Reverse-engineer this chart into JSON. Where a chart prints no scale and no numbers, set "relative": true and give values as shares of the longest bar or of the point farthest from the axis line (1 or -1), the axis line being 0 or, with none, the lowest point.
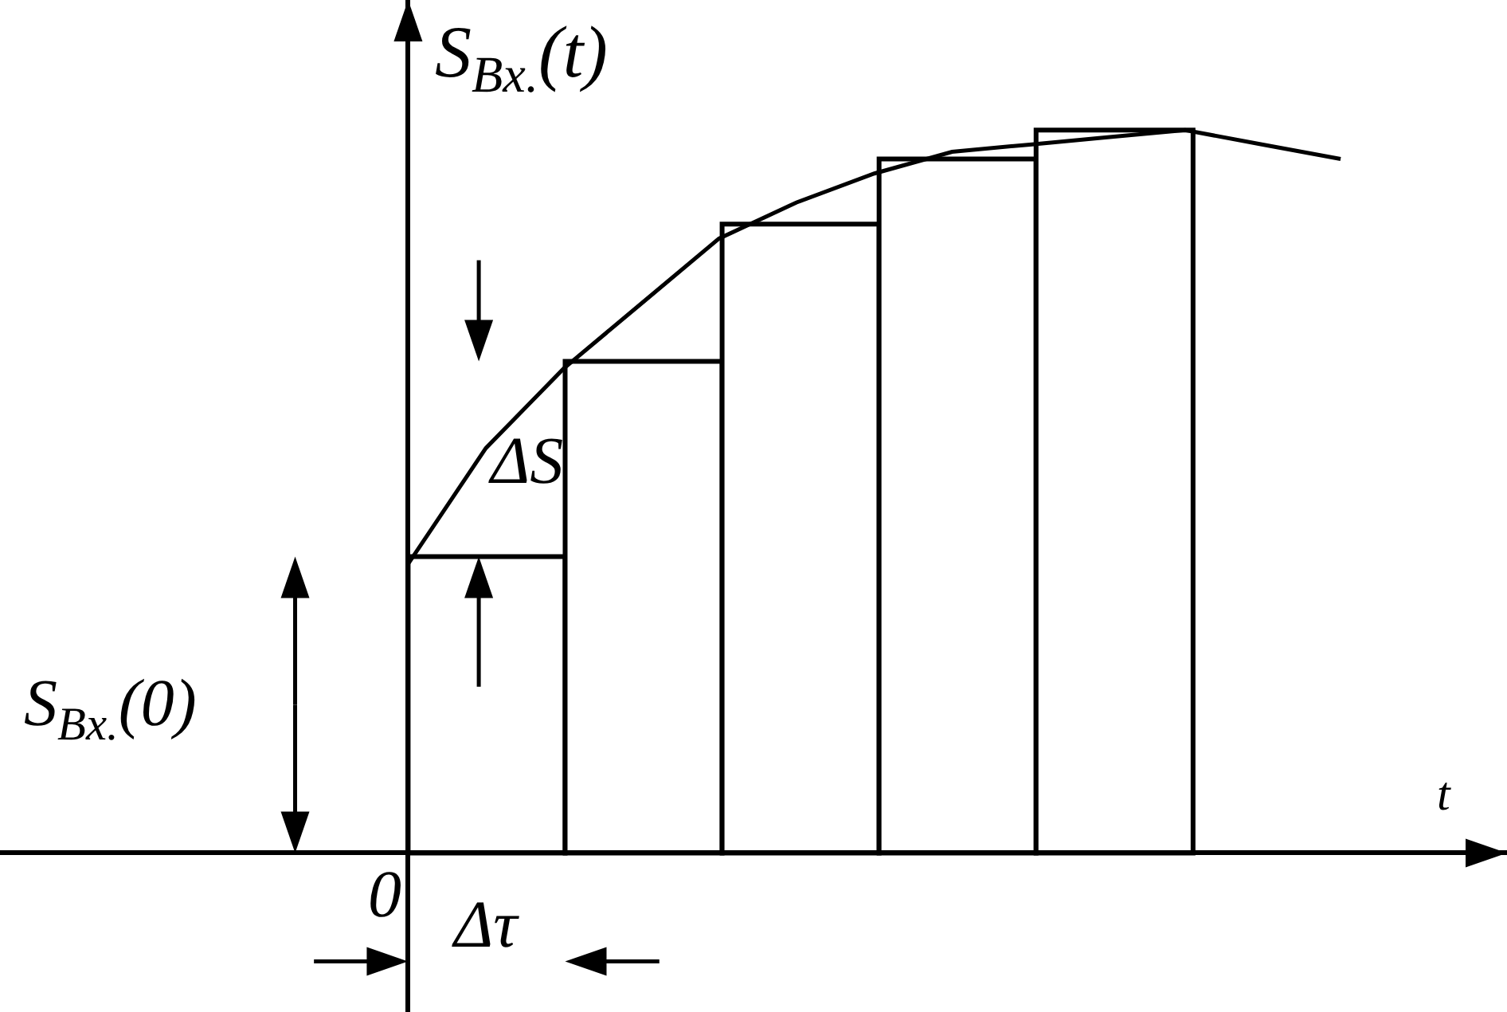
{
  "chart_data": [
    {
      "type": "bar",
      "relative": true,
      "xlabel": "t",
      "ylabel": "S$_{Bx.}$(t)",
      "categories": [
        null,
        null,
        null,
        null,
        null
      ],
      "series": [
        {
          "type": "bar",
          "color": "#ffffff",
          "values": [
            0.41,
            0.68,
            0.87,
            0.96,
            1
          ]
        }
      ],
      "annotations": [
        "ΔS",
        "Δτ",
        "0",
        "S$_{Bx.}$(0)"
      ]
    },
    {
      "type": "line",
      "relative": true,
      "categories": [
        null,
        null,
        null,
        null,
        null,
        null,
        null,
        null,
        null,
        null,
        null,
        null,
        null
      ],
      "series": [
        {
          "type": "line",
          "color": "#000000",
          "values": [
            0.4,
            0.56,
            0.67,
            0.76,
            0.85,
            0.9,
            0.94,
            0.97,
            0.98,
            0.99,
            1,
            0.98,
            0.96
          ]
        }
      ]
    }
  ]
}
